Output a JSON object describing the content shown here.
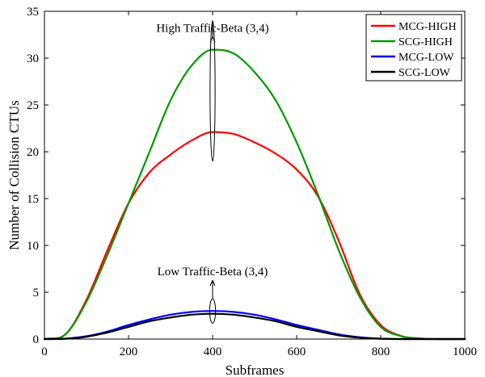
{
  "chart_data": {
    "type": "line",
    "title": "",
    "xlabel": "Subframes",
    "ylabel": "Number of Collision CTUs",
    "xlim": [
      0,
      1000
    ],
    "ylim": [
      0,
      35
    ],
    "xticks": [
      0,
      200,
      400,
      600,
      800,
      1000
    ],
    "yticks": [
      0,
      5,
      10,
      15,
      20,
      25,
      30,
      35
    ],
    "xtick_labels": [
      "0",
      "200",
      "400",
      "600",
      "800",
      "1000"
    ],
    "ytick_labels": [
      "0",
      "5",
      "10",
      "15",
      "20",
      "25",
      "30",
      "35"
    ],
    "grid": false,
    "legend_position": "top-right",
    "x": [
      0,
      50,
      100,
      150,
      200,
      250,
      300,
      350,
      400,
      450,
      500,
      550,
      600,
      650,
      700,
      750,
      800,
      850,
      900,
      950,
      1000
    ],
    "series": [
      {
        "name": "MCG-HIGH",
        "color": "#ff0000",
        "values": [
          0,
          0.5,
          4.2,
          9.5,
          14.5,
          17.8,
          19.7,
          21.2,
          22.1,
          21.9,
          21.0,
          19.8,
          18.1,
          15.3,
          10.5,
          4.8,
          1.5,
          0.3,
          0.05,
          0,
          0
        ]
      },
      {
        "name": "SCG-HIGH",
        "color": "#009900",
        "values": [
          0,
          0.5,
          4.0,
          9.0,
          14.5,
          20.0,
          25.5,
          29.2,
          30.9,
          30.5,
          28.5,
          25.5,
          21.0,
          15.5,
          9.5,
          4.5,
          1.3,
          0.3,
          0.05,
          0,
          0
        ]
      },
      {
        "name": "MCG-LOW",
        "color": "#0000ff",
        "values": [
          0,
          0.05,
          0.3,
          0.8,
          1.5,
          2.1,
          2.6,
          2.9,
          3.0,
          2.9,
          2.6,
          2.1,
          1.5,
          1.0,
          0.5,
          0.2,
          0.05,
          0,
          0,
          0,
          0
        ]
      },
      {
        "name": "SCG-LOW",
        "color": "#000000",
        "values": [
          0,
          0.03,
          0.25,
          0.7,
          1.3,
          1.9,
          2.3,
          2.6,
          2.7,
          2.6,
          2.3,
          1.9,
          1.3,
          0.85,
          0.4,
          0.15,
          0.03,
          0,
          0,
          0,
          0
        ]
      }
    ],
    "annotations": [
      {
        "text": "High Traffic-Beta (3,4)",
        "x": 400,
        "y": 32.8,
        "ellipse_center": [
          400,
          26.5
        ],
        "ellipse_rx_data": 6,
        "ellipse_ry_data": 7.5,
        "arrow_to": [
          400,
          31
        ]
      },
      {
        "text": "Low Traffic-Beta (3,4)",
        "x": 400,
        "y": 6.8,
        "ellipse_center": [
          400,
          3.0
        ],
        "ellipse_rx_data": 7,
        "ellipse_ry_data": 1.3,
        "arrow_to": [
          400,
          3.9
        ]
      }
    ]
  }
}
